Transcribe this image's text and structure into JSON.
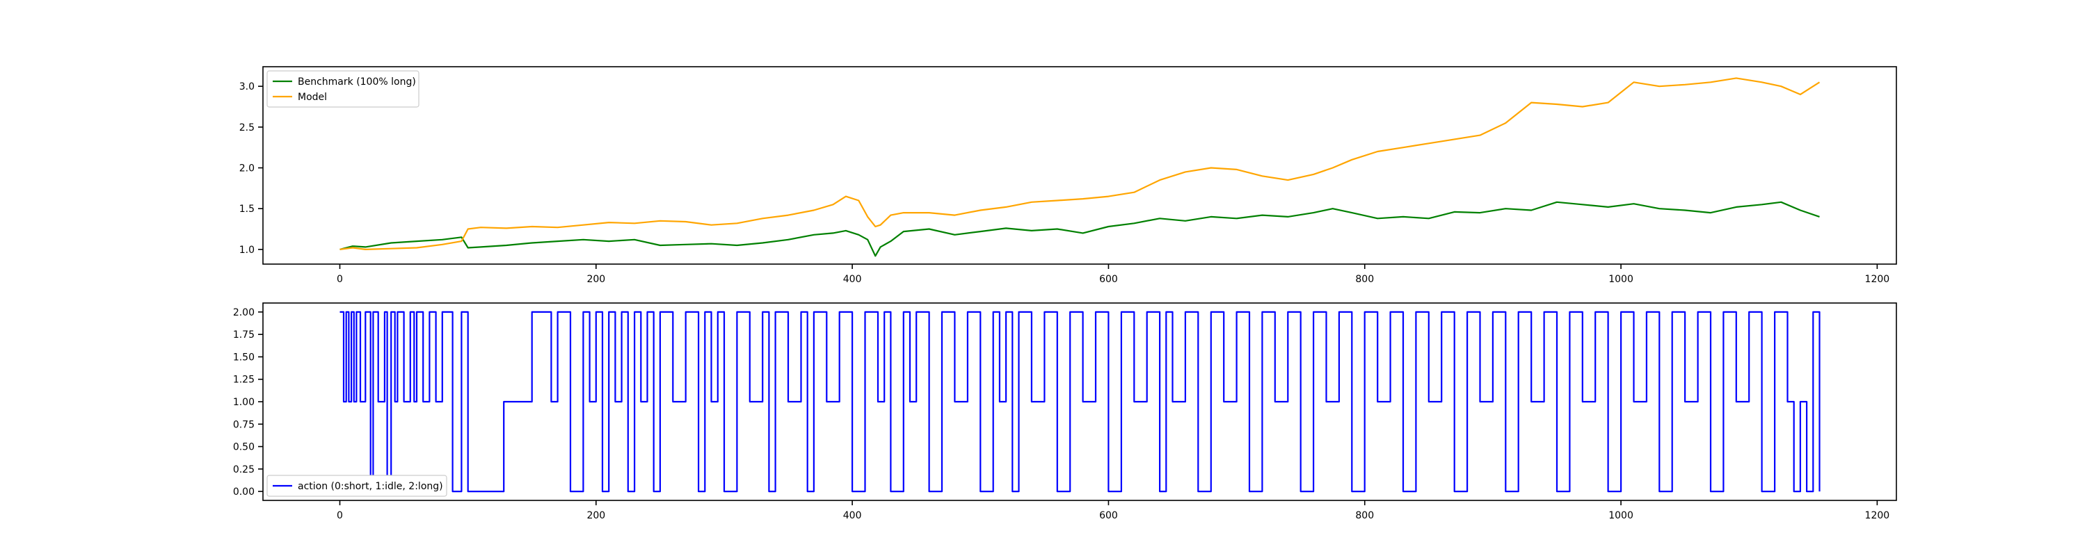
{
  "chart_data": [
    {
      "type": "line",
      "xlim": [
        -60,
        1215
      ],
      "ylim": [
        0.82,
        3.24
      ],
      "x_ticks": [
        0,
        200,
        400,
        600,
        800,
        1000,
        1200
      ],
      "y_ticks": [
        1.0,
        1.5,
        2.0,
        2.5,
        3.0
      ],
      "y_tick_decimals": 1,
      "legend_position": "upper left",
      "series": [
        {
          "name": "Benchmark (100% long)",
          "color": "#008000",
          "x": [
            0,
            10,
            20,
            40,
            60,
            80,
            95,
            100,
            110,
            130,
            150,
            170,
            190,
            210,
            230,
            250,
            270,
            290,
            310,
            330,
            350,
            370,
            385,
            395,
            405,
            412,
            418,
            422,
            430,
            440,
            460,
            480,
            500,
            520,
            540,
            560,
            580,
            600,
            620,
            640,
            660,
            680,
            700,
            720,
            740,
            760,
            775,
            790,
            810,
            830,
            850,
            870,
            890,
            910,
            930,
            950,
            970,
            990,
            1010,
            1030,
            1050,
            1070,
            1090,
            1110,
            1125,
            1140,
            1155
          ],
          "values": [
            1.0,
            1.04,
            1.03,
            1.08,
            1.1,
            1.12,
            1.15,
            1.02,
            1.03,
            1.05,
            1.08,
            1.1,
            1.12,
            1.1,
            1.12,
            1.05,
            1.06,
            1.07,
            1.05,
            1.08,
            1.12,
            1.18,
            1.2,
            1.23,
            1.18,
            1.12,
            0.92,
            1.03,
            1.1,
            1.22,
            1.25,
            1.18,
            1.22,
            1.26,
            1.23,
            1.25,
            1.2,
            1.28,
            1.32,
            1.38,
            1.35,
            1.4,
            1.38,
            1.42,
            1.4,
            1.45,
            1.5,
            1.45,
            1.38,
            1.4,
            1.38,
            1.46,
            1.45,
            1.5,
            1.48,
            1.58,
            1.55,
            1.52,
            1.56,
            1.5,
            1.48,
            1.45,
            1.52,
            1.55,
            1.58,
            1.48,
            1.4
          ]
        },
        {
          "name": "Model",
          "color": "#ffa500",
          "x": [
            0,
            10,
            20,
            40,
            60,
            80,
            95,
            100,
            110,
            130,
            150,
            170,
            190,
            210,
            230,
            250,
            270,
            290,
            310,
            330,
            350,
            370,
            385,
            395,
            405,
            412,
            418,
            422,
            430,
            440,
            460,
            480,
            500,
            520,
            540,
            560,
            580,
            600,
            620,
            640,
            660,
            680,
            700,
            720,
            740,
            760,
            775,
            790,
            810,
            830,
            850,
            870,
            890,
            910,
            930,
            950,
            970,
            990,
            1010,
            1030,
            1050,
            1070,
            1090,
            1110,
            1125,
            1140,
            1155
          ],
          "values": [
            1.0,
            1.02,
            1.0,
            1.01,
            1.02,
            1.06,
            1.1,
            1.25,
            1.27,
            1.26,
            1.28,
            1.27,
            1.3,
            1.33,
            1.32,
            1.35,
            1.34,
            1.3,
            1.32,
            1.38,
            1.42,
            1.48,
            1.55,
            1.65,
            1.6,
            1.4,
            1.28,
            1.3,
            1.42,
            1.45,
            1.45,
            1.42,
            1.48,
            1.52,
            1.58,
            1.6,
            1.62,
            1.65,
            1.7,
            1.85,
            1.95,
            2.0,
            1.98,
            1.9,
            1.85,
            1.92,
            2.0,
            2.1,
            2.2,
            2.25,
            2.3,
            2.35,
            2.4,
            2.55,
            2.8,
            2.78,
            2.75,
            2.8,
            3.05,
            3.0,
            3.02,
            3.05,
            3.1,
            3.05,
            3.0,
            2.9,
            3.05
          ]
        }
      ]
    },
    {
      "type": "line",
      "xlim": [
        -60,
        1215
      ],
      "ylim": [
        -0.1,
        2.1
      ],
      "x_ticks": [
        0,
        200,
        400,
        600,
        800,
        1000,
        1200
      ],
      "y_ticks": [
        0.0,
        0.25,
        0.5,
        0.75,
        1.0,
        1.25,
        1.5,
        1.75,
        2.0
      ],
      "y_tick_decimals": 2,
      "legend_position": "lower left",
      "series": [
        {
          "name": "action (0:short, 1:idle, 2:long)",
          "color": "#0000ff",
          "step": true,
          "x": [
            0,
            3,
            5,
            7,
            9,
            11,
            13,
            16,
            20,
            24,
            26,
            30,
            35,
            37,
            40,
            43,
            45,
            50,
            55,
            58,
            60,
            65,
            70,
            75,
            80,
            88,
            95,
            100,
            128,
            130,
            150,
            165,
            170,
            180,
            190,
            195,
            200,
            205,
            210,
            215,
            220,
            225,
            230,
            235,
            240,
            245,
            250,
            260,
            270,
            280,
            285,
            290,
            295,
            300,
            310,
            320,
            330,
            335,
            340,
            350,
            360,
            365,
            370,
            380,
            390,
            400,
            410,
            420,
            425,
            430,
            440,
            445,
            450,
            460,
            470,
            480,
            490,
            500,
            510,
            515,
            520,
            525,
            530,
            540,
            550,
            560,
            570,
            580,
            590,
            600,
            610,
            620,
            630,
            640,
            645,
            650,
            660,
            670,
            680,
            690,
            700,
            710,
            720,
            730,
            740,
            750,
            760,
            770,
            780,
            790,
            800,
            810,
            820,
            830,
            840,
            850,
            860,
            870,
            880,
            890,
            900,
            910,
            920,
            930,
            940,
            950,
            960,
            970,
            980,
            990,
            1000,
            1010,
            1020,
            1030,
            1040,
            1050,
            1060,
            1070,
            1080,
            1090,
            1100,
            1110,
            1120,
            1130,
            1135,
            1140,
            1145,
            1150,
            1155
          ],
          "values": [
            2,
            1,
            2,
            1,
            2,
            1,
            2,
            1,
            2,
            0,
            2,
            1,
            2,
            0,
            2,
            1,
            2,
            1,
            2,
            1,
            2,
            1,
            2,
            1,
            2,
            0,
            2,
            0,
            1,
            1,
            2,
            1,
            2,
            0,
            2,
            1,
            2,
            0,
            2,
            1,
            2,
            0,
            2,
            1,
            2,
            0,
            2,
            1,
            2,
            0,
            2,
            1,
            2,
            0,
            2,
            1,
            2,
            0,
            2,
            1,
            2,
            0,
            2,
            1,
            2,
            0,
            2,
            1,
            2,
            0,
            2,
            1,
            2,
            0,
            2,
            1,
            2,
            0,
            2,
            1,
            2,
            0,
            2,
            1,
            2,
            0,
            2,
            1,
            2,
            0,
            2,
            1,
            2,
            0,
            2,
            1,
            2,
            0,
            2,
            1,
            2,
            0,
            2,
            1,
            2,
            0,
            2,
            1,
            2,
            0,
            2,
            1,
            2,
            0,
            2,
            1,
            2,
            0,
            2,
            1,
            2,
            0,
            2,
            1,
            2,
            0,
            2,
            1,
            2,
            0,
            2,
            1,
            2,
            0,
            2,
            1,
            2,
            0,
            2,
            1,
            2,
            0,
            2,
            1,
            0,
            1,
            0,
            2,
            0
          ]
        }
      ]
    }
  ]
}
